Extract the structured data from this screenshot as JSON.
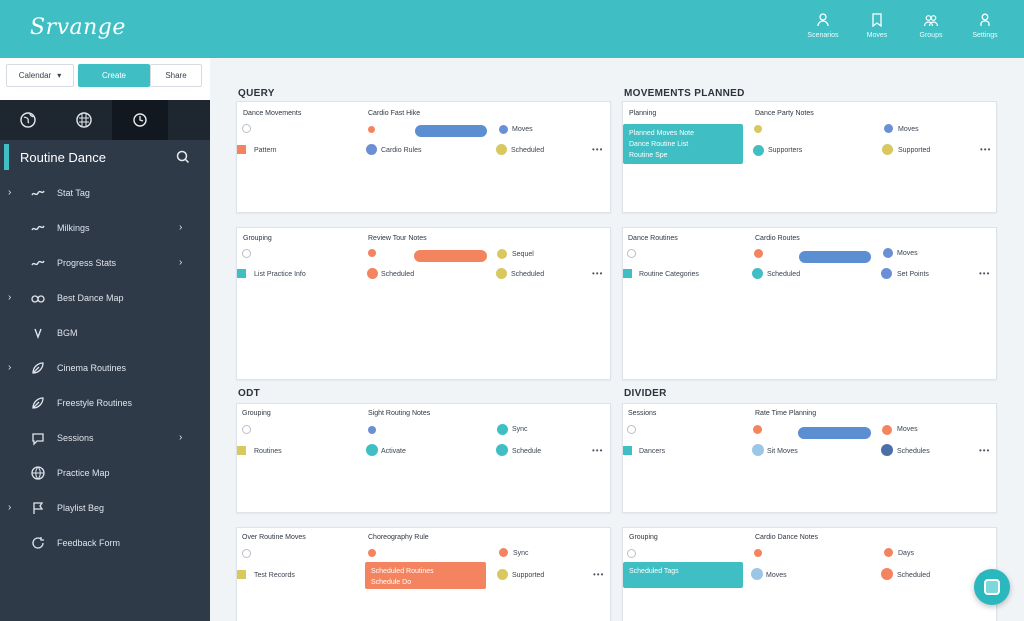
{
  "header": {
    "logo": "Srvange",
    "nav": [
      {
        "label": "Scenarios",
        "icon": "user-icon"
      },
      {
        "label": "Moves",
        "icon": "bookmark-icon"
      },
      {
        "label": "Groups",
        "icon": "users-icon"
      },
      {
        "label": "Settings",
        "icon": "person-icon"
      }
    ]
  },
  "controls": {
    "select_label": "Calendar",
    "primary_label": "Create",
    "secondary_label": "Share"
  },
  "sidebar": {
    "tabs": [
      "globe-icon",
      "grid-icon",
      "clock-icon"
    ],
    "title": "Routine Dance",
    "items": [
      {
        "label": "Stat Tag",
        "icon": "wave-icon",
        "left_chevron": true,
        "right_chevron": false
      },
      {
        "label": "Milkings",
        "icon": "wave-icon",
        "left_chevron": false,
        "right_chevron": true
      },
      {
        "label": "Progress Stats",
        "icon": "wave-icon",
        "left_chevron": false,
        "right_chevron": true
      },
      {
        "label": "Best Dance Map",
        "icon": "link-icon",
        "left_chevron": true,
        "right_chevron": false
      },
      {
        "label": "BGM",
        "icon": "music-icon",
        "left_chevron": false,
        "right_chevron": false
      },
      {
        "label": "Cinema Routines",
        "icon": "leaf-icon",
        "left_chevron": true,
        "right_chevron": false
      },
      {
        "label": "Freestyle Routines",
        "icon": "leaf-icon",
        "left_chevron": false,
        "right_chevron": false
      },
      {
        "label": "Sessions",
        "icon": "chat-icon",
        "left_chevron": false,
        "right_chevron": true
      },
      {
        "label": "Practice Map",
        "icon": "globe-icon",
        "left_chevron": false,
        "right_chevron": false
      },
      {
        "label": "Playlist Beg",
        "icon": "flag-icon",
        "left_chevron": true,
        "right_chevron": false
      },
      {
        "label": "Feedback Form",
        "icon": "refresh-icon",
        "left_chevron": false,
        "right_chevron": false
      }
    ]
  },
  "main": {
    "sections": [
      "QUERY",
      "MOVEMENTS PLANNED",
      "ODT",
      "DIVIDER"
    ],
    "cards": [
      {
        "col1_header": "Dance Movements",
        "col2_header": "Cardio Fast Hike",
        "col1_row": "Pattern",
        "col2_row": "Cardio Rules",
        "col3_row1": "Moves",
        "col3_row2": "Scheduled"
      },
      {
        "col1_header": "Planning",
        "col2_header": "Dance Party Notes",
        "block_lines": [
          "Planned Moves Note",
          "Dance Routine List",
          "Routine Spe"
        ],
        "col2_row": "Supporters",
        "col3_row1": "Moves",
        "col3_row2": "Supported"
      },
      {
        "col1_header": "Grouping",
        "col2_header": "Review Tour Notes",
        "col1_row": "List Practice Info",
        "col2_row": "Scheduled",
        "col3_row1": "Sequel",
        "col3_row2": "Scheduled"
      },
      {
        "col1_header": "Dance Routines",
        "col2_header": "Cardio Routes",
        "col1_row": "Routine Categories",
        "col2_row": "Scheduled",
        "col3_row1": "Moves",
        "col3_row2": "Set Points"
      },
      {
        "col1_header": "Grouping",
        "col2_header": "Sight Routing Notes",
        "col1_row": "Routines",
        "col2_row": "Activate",
        "col3_row1": "Sync",
        "col3_row2": "Schedule"
      },
      {
        "col1_header": "Sessions",
        "col2_header": "Rate Time Planning",
        "col1_row": "Dancers",
        "col2_row": "Sit Moves",
        "col3_row1": "Moves",
        "col3_row2": "Schedules"
      },
      {
        "col1_header": "Over Routine Moves",
        "col2_header": "Choreography Rule",
        "col1_row": "Test Records",
        "block_lines": [
          "Scheduled Routines",
          "Schedule Do"
        ],
        "col3_row1": "Sync",
        "col3_row2": "Supported"
      },
      {
        "col1_header": "Grouping",
        "col2_header": "Cardio Dance Notes",
        "block_lines": [
          "Scheduled Tags"
        ],
        "col2_row": "Moves",
        "col3_row1": "Days",
        "col3_row2": "Scheduled"
      }
    ],
    "more_label": "•••"
  },
  "colors": {
    "accent": "#3fbfc4",
    "blue": "#5b8fd1",
    "orange": "#f4845f",
    "yellow": "#d8c85e",
    "sidebar": "#2f3a48"
  }
}
